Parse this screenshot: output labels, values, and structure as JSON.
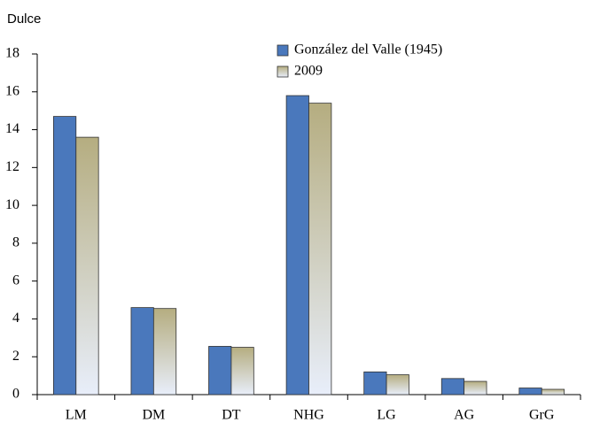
{
  "chart_data": {
    "type": "bar",
    "title": "Dulce",
    "categories": [
      "LM",
      "DM",
      "DT",
      "NHG",
      "LG",
      "AG",
      "GrG"
    ],
    "series": [
      {
        "name": "González del Valle (1945)",
        "color": "#4a78bc",
        "values": [
          14.7,
          4.6,
          2.55,
          15.8,
          1.2,
          0.85,
          0.35
        ]
      },
      {
        "name": "2009",
        "color": "#b5ad80",
        "values": [
          13.6,
          4.55,
          2.5,
          15.4,
          1.05,
          0.7,
          0.28
        ]
      }
    ],
    "ylim": [
      0,
      18
    ],
    "yticks": [
      0,
      2,
      4,
      6,
      8,
      10,
      12,
      14,
      16,
      18
    ],
    "grid": false
  }
}
